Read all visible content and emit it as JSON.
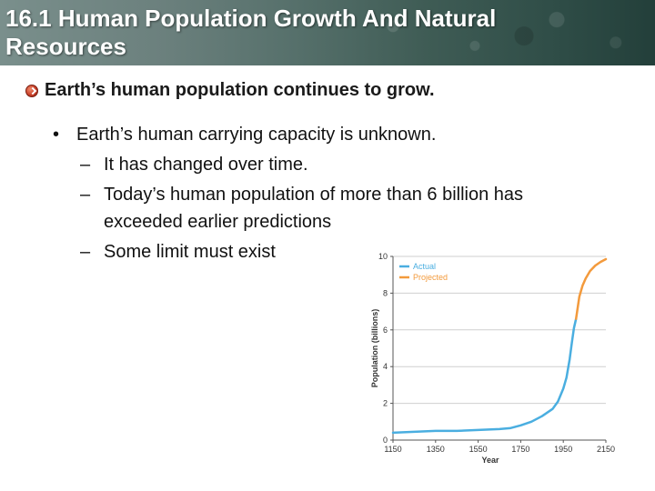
{
  "slide": {
    "title": "16.1 Human Population Growth And Natural Resources",
    "heading": "Earth’s human population continues to grow.",
    "bullet": "Earth’s human carrying capacity is unknown.",
    "subbullets": [
      "It has changed over time.",
      "Today’s human population of more than 6 billion has",
      "exceeded earlier predictions",
      "Some limit must exist"
    ],
    "icons": {
      "heading_bullet": "checkmark-bullet-icon"
    },
    "colors": {
      "actual": "#4aaee0",
      "projected": "#f39a3c",
      "title_text": "#ffffff"
    }
  },
  "chart_data": {
    "type": "line",
    "xlabel": "Year",
    "ylabel": "Population (billions)",
    "xlim": [
      1150,
      2150
    ],
    "ylim": [
      0,
      10
    ],
    "xticks": [
      "1150",
      "1350",
      "1550",
      "1750",
      "1950",
      "2150"
    ],
    "yticks": [
      "0",
      "2",
      "4",
      "6",
      "8",
      "10"
    ],
    "grid": true,
    "legend_position": "top-left",
    "series": [
      {
        "name": "Actual",
        "color": "#4aaee0",
        "x": [
          1150,
          1250,
          1350,
          1450,
          1550,
          1650,
          1700,
          1750,
          1800,
          1850,
          1900,
          1925,
          1950,
          1965,
          1980,
          1990,
          2000,
          2010
        ],
        "y": [
          0.4,
          0.45,
          0.5,
          0.5,
          0.55,
          0.6,
          0.65,
          0.8,
          1.0,
          1.3,
          1.7,
          2.1,
          2.8,
          3.4,
          4.4,
          5.3,
          6.1,
          6.6
        ]
      },
      {
        "name": "Projected",
        "color": "#f39a3c",
        "x": [
          2010,
          2025,
          2040,
          2055,
          2075,
          2100,
          2125,
          2150
        ],
        "y": [
          6.6,
          7.8,
          8.4,
          8.8,
          9.2,
          9.5,
          9.7,
          9.85
        ]
      }
    ]
  }
}
